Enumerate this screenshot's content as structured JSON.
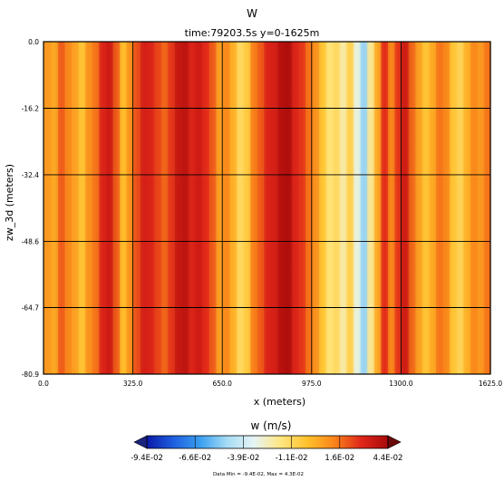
{
  "chart_data": {
    "type": "heatmap",
    "title": "W",
    "subtitle": "time:79203.5s   y=0-1625m",
    "xlabel": "x (meters)",
    "ylabel": "zw_3d (meters)",
    "xlim": [
      0.0,
      1625.0
    ],
    "ylim": [
      -80.9,
      0.0
    ],
    "x_ticks": [
      "0.0",
      "325.0",
      "650.0",
      "975.0",
      "1300.0",
      "1625.0"
    ],
    "y_ticks": [
      "0.0",
      "-16.2",
      "-32.4",
      "-48.6",
      "-64.7",
      "-80.9"
    ],
    "grid": true,
    "colorbar": {
      "label": "w (m/s)",
      "ticks": [
        "-9.4E-02",
        "-6.6E-02",
        "-3.9E-02",
        "-1.1E-02",
        "1.6E-02",
        "4.4E-02"
      ],
      "min": -0.094,
      "max": 0.044,
      "colormap": [
        "#0a1aa8",
        "#1f5fe0",
        "#3aa0f0",
        "#a6dcf5",
        "#e6f4f5",
        "#ffe680",
        "#ffc02a",
        "#f9841a",
        "#e0261a",
        "#a80a0a"
      ]
    },
    "footer": "Data Min = -9.4E-02, Max = 4.3E-02",
    "columns": [
      {
        "x": 15,
        "w": 0.008
      },
      {
        "x": 40,
        "w": 0.004
      },
      {
        "x": 65,
        "w": 0.02
      },
      {
        "x": 90,
        "w": 0.012
      },
      {
        "x": 115,
        "w": 0.006
      },
      {
        "x": 140,
        "w": -0.004
      },
      {
        "x": 165,
        "w": 0.01
      },
      {
        "x": 190,
        "w": 0.016
      },
      {
        "x": 215,
        "w": 0.03
      },
      {
        "x": 240,
        "w": 0.034
      },
      {
        "x": 265,
        "w": 0.02
      },
      {
        "x": 290,
        "w": -0.002
      },
      {
        "x": 315,
        "w": 0.01
      },
      {
        "x": 340,
        "w": 0.022
      },
      {
        "x": 365,
        "w": 0.032
      },
      {
        "x": 390,
        "w": 0.03
      },
      {
        "x": 415,
        "w": 0.024
      },
      {
        "x": 440,
        "w": 0.018
      },
      {
        "x": 465,
        "w": 0.026
      },
      {
        "x": 490,
        "w": 0.036
      },
      {
        "x": 515,
        "w": 0.038
      },
      {
        "x": 540,
        "w": 0.03
      },
      {
        "x": 565,
        "w": 0.034
      },
      {
        "x": 590,
        "w": 0.028
      },
      {
        "x": 615,
        "w": 0.02
      },
      {
        "x": 640,
        "w": 0.006
      },
      {
        "x": 665,
        "w": 0.012
      },
      {
        "x": 690,
        "w": 0.002
      },
      {
        "x": 715,
        "w": -0.012
      },
      {
        "x": 740,
        "w": -0.006
      },
      {
        "x": 765,
        "w": 0.014
      },
      {
        "x": 790,
        "w": 0.02
      },
      {
        "x": 815,
        "w": 0.03
      },
      {
        "x": 840,
        "w": 0.032
      },
      {
        "x": 865,
        "w": 0.04
      },
      {
        "x": 890,
        "w": 0.042
      },
      {
        "x": 915,
        "w": 0.03
      },
      {
        "x": 940,
        "w": 0.026
      },
      {
        "x": 965,
        "w": 0.016
      },
      {
        "x": 990,
        "w": 0.01
      },
      {
        "x": 1015,
        "w": -0.004
      },
      {
        "x": 1040,
        "w": -0.016
      },
      {
        "x": 1065,
        "w": -0.012
      },
      {
        "x": 1090,
        "w": -0.022
      },
      {
        "x": 1115,
        "w": -0.008
      },
      {
        "x": 1140,
        "w": -0.03
      },
      {
        "x": 1165,
        "w": -0.05
      },
      {
        "x": 1190,
        "w": -0.02
      },
      {
        "x": 1215,
        "w": 0.004
      },
      {
        "x": 1240,
        "w": 0.028
      },
      {
        "x": 1265,
        "w": 0.012
      },
      {
        "x": 1290,
        "w": 0.026
      },
      {
        "x": 1315,
        "w": 0.034
      },
      {
        "x": 1340,
        "w": 0.018
      },
      {
        "x": 1365,
        "w": 0.006
      },
      {
        "x": 1390,
        "w": -0.004
      },
      {
        "x": 1415,
        "w": 0.004
      },
      {
        "x": 1440,
        "w": 0.016
      },
      {
        "x": 1465,
        "w": 0.012
      },
      {
        "x": 1490,
        "w": -0.004
      },
      {
        "x": 1515,
        "w": -0.01
      },
      {
        "x": 1540,
        "w": 0.002
      },
      {
        "x": 1565,
        "w": 0.012
      },
      {
        "x": 1590,
        "w": 0.008
      },
      {
        "x": 1615,
        "w": 0.016
      }
    ]
  }
}
